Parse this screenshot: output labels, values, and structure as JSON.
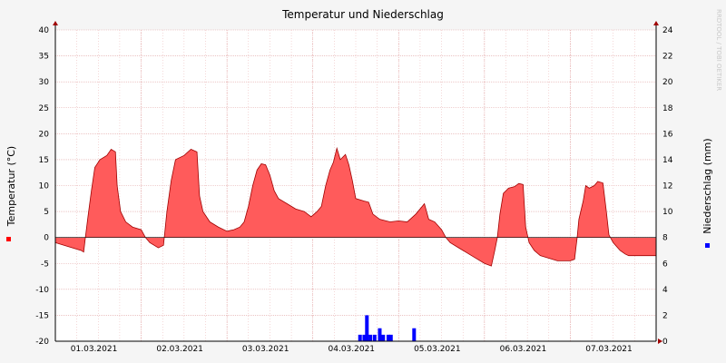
{
  "chart_data": {
    "type": "area",
    "title": "Temperatur und Niederschlag",
    "watermark": "RRDTOOL / TOBI OETIKER",
    "left_axis": {
      "label": "Temperatur (°C)",
      "min": -20,
      "max": 40,
      "ticks": [
        -20,
        -15,
        -10,
        -5,
        0,
        5,
        10,
        15,
        20,
        25,
        30,
        35,
        40
      ]
    },
    "right_axis": {
      "label": "Niederschlag (mm)",
      "min": 0,
      "max": 24,
      "ticks": [
        0,
        2,
        4,
        6,
        8,
        10,
        12,
        14,
        16,
        18,
        20,
        22,
        24
      ]
    },
    "x_axis": {
      "min": 0,
      "max": 7,
      "unit": "days",
      "labels": [
        "01.03.2021",
        "02.03.2021",
        "03.03.2021",
        "04.03.2021",
        "05.03.2021",
        "06.03.2021",
        "07.03.2021"
      ]
    },
    "grid": true,
    "temperature": {
      "color": "#ff5b5b",
      "points": [
        [
          0.0,
          -1.0
        ],
        [
          0.1,
          -1.5
        ],
        [
          0.2,
          -2.0
        ],
        [
          0.3,
          -2.5
        ],
        [
          0.33,
          -2.8
        ],
        [
          0.35,
          0
        ],
        [
          0.38,
          4.0
        ],
        [
          0.42,
          9.0
        ],
        [
          0.46,
          13.5
        ],
        [
          0.52,
          15.0
        ],
        [
          0.6,
          15.8
        ],
        [
          0.65,
          17.0
        ],
        [
          0.7,
          16.5
        ],
        [
          0.72,
          10.0
        ],
        [
          0.76,
          5.0
        ],
        [
          0.82,
          3.0
        ],
        [
          0.9,
          2.0
        ],
        [
          1.0,
          1.5
        ],
        [
          1.05,
          0
        ],
        [
          1.1,
          -1.0
        ],
        [
          1.2,
          -2.0
        ],
        [
          1.26,
          -1.5
        ],
        [
          1.3,
          5.0
        ],
        [
          1.35,
          11.0
        ],
        [
          1.4,
          15.0
        ],
        [
          1.5,
          15.8
        ],
        [
          1.58,
          17.0
        ],
        [
          1.65,
          16.5
        ],
        [
          1.68,
          8.0
        ],
        [
          1.72,
          5.0
        ],
        [
          1.8,
          3.0
        ],
        [
          1.9,
          2.0
        ],
        [
          2.0,
          1.2
        ],
        [
          2.08,
          1.5
        ],
        [
          2.15,
          2.0
        ],
        [
          2.2,
          3.0
        ],
        [
          2.25,
          6.0
        ],
        [
          2.3,
          10.0
        ],
        [
          2.35,
          13.0
        ],
        [
          2.4,
          14.2
        ],
        [
          2.45,
          14.0
        ],
        [
          2.5,
          12.0
        ],
        [
          2.55,
          9.0
        ],
        [
          2.6,
          7.5
        ],
        [
          2.7,
          6.5
        ],
        [
          2.8,
          5.5
        ],
        [
          2.9,
          5.0
        ],
        [
          2.98,
          4.0
        ],
        [
          3.05,
          5.0
        ],
        [
          3.1,
          6.0
        ],
        [
          3.15,
          10.0
        ],
        [
          3.2,
          13.0
        ],
        [
          3.24,
          14.5
        ],
        [
          3.28,
          17.2
        ],
        [
          3.32,
          15.0
        ],
        [
          3.38,
          16.0
        ],
        [
          3.42,
          14.0
        ],
        [
          3.46,
          11.0
        ],
        [
          3.5,
          7.5
        ],
        [
          3.6,
          7.0
        ],
        [
          3.65,
          6.8
        ],
        [
          3.7,
          4.5
        ],
        [
          3.78,
          3.5
        ],
        [
          3.9,
          3.0
        ],
        [
          4.0,
          3.2
        ],
        [
          4.1,
          3.0
        ],
        [
          4.2,
          4.5
        ],
        [
          4.3,
          6.5
        ],
        [
          4.35,
          3.5
        ],
        [
          4.42,
          3.0
        ],
        [
          4.5,
          1.5
        ],
        [
          4.55,
          0
        ],
        [
          4.6,
          -1.0
        ],
        [
          4.7,
          -2.0
        ],
        [
          4.8,
          -3.0
        ],
        [
          4.9,
          -4.0
        ],
        [
          5.0,
          -5.0
        ],
        [
          5.08,
          -5.5
        ],
        [
          5.12,
          -2.5
        ],
        [
          5.15,
          0
        ],
        [
          5.18,
          4.5
        ],
        [
          5.22,
          8.5
        ],
        [
          5.28,
          9.5
        ],
        [
          5.35,
          9.8
        ],
        [
          5.4,
          10.4
        ],
        [
          5.45,
          10.2
        ],
        [
          5.48,
          2.0
        ],
        [
          5.52,
          -1.0
        ],
        [
          5.58,
          -2.5
        ],
        [
          5.65,
          -3.5
        ],
        [
          5.75,
          -4.0
        ],
        [
          5.85,
          -4.5
        ],
        [
          5.95,
          -4.5
        ],
        [
          6.0,
          -4.5
        ],
        [
          6.05,
          -4.2
        ],
        [
          6.08,
          0
        ],
        [
          6.1,
          3.5
        ],
        [
          6.15,
          7.0
        ],
        [
          6.18,
          10.0
        ],
        [
          6.22,
          9.5
        ],
        [
          6.28,
          10.0
        ],
        [
          6.32,
          10.8
        ],
        [
          6.38,
          10.5
        ],
        [
          6.42,
          5.0
        ],
        [
          6.45,
          0.5
        ],
        [
          6.5,
          -1.0
        ],
        [
          6.58,
          -2.5
        ],
        [
          6.64,
          -3.2
        ],
        [
          6.68,
          -3.5
        ],
        [
          7.0,
          -3.5
        ]
      ]
    },
    "precipitation": {
      "color": "#0000ff",
      "bars": [
        [
          3.55,
          0.5
        ],
        [
          3.6,
          0.5
        ],
        [
          3.63,
          2.0
        ],
        [
          3.67,
          0.5
        ],
        [
          3.72,
          0.5
        ],
        [
          3.78,
          1.0
        ],
        [
          3.82,
          0.5
        ],
        [
          3.88,
          0.5
        ],
        [
          3.91,
          0.5
        ],
        [
          4.18,
          1.0
        ]
      ]
    }
  }
}
